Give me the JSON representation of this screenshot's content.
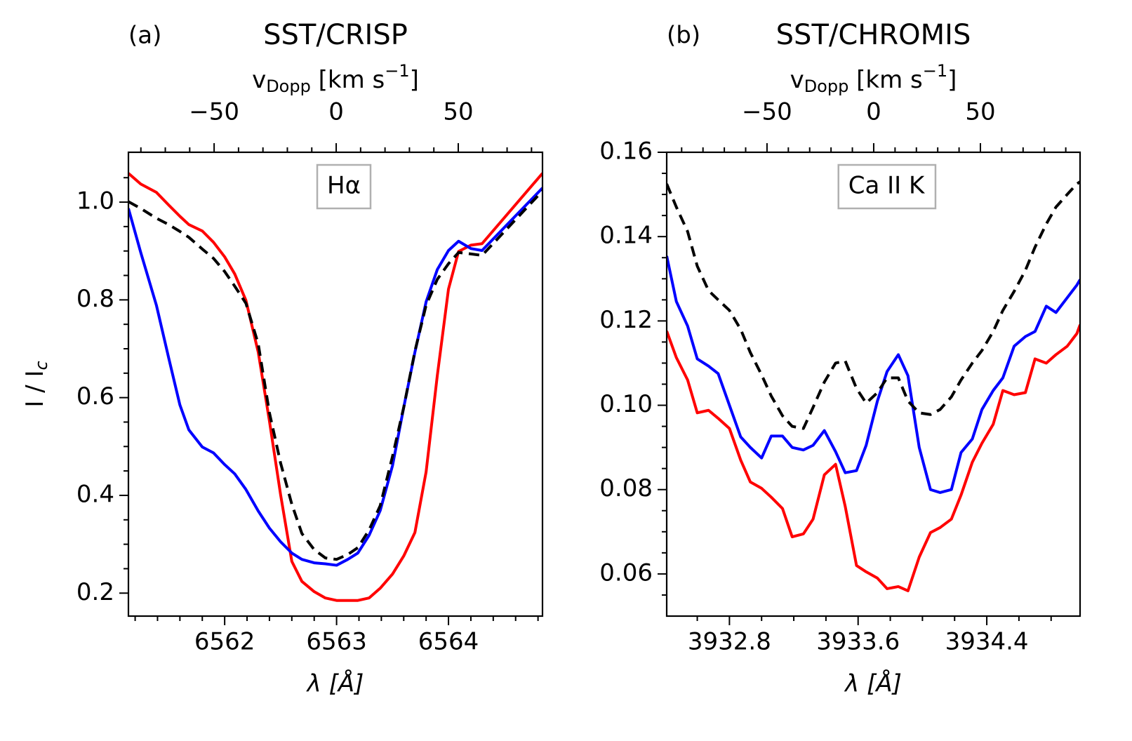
{
  "chart_data": [
    {
      "type": "line",
      "label": "(a)",
      "title": "SST/CRISP",
      "annotation": "Hα",
      "xlabel": "λ [Å]",
      "ylabel": [
        "I / I",
        "c"
      ],
      "x2label": [
        "v",
        "Dopp",
        " [km s",
        "−1",
        "]"
      ],
      "x": [
        6561.14,
        6561.25,
        6561.39,
        6561.5,
        6561.6,
        6561.68,
        6561.8,
        6561.9,
        6562,
        6562.09,
        6562.19,
        6562.3,
        6562.4,
        6562.5,
        6562.6,
        6562.69,
        6562.8,
        6562.9,
        6563,
        6563.1,
        6563.19,
        6563.29,
        6563.39,
        6563.5,
        6563.6,
        6563.7,
        6563.8,
        6563.9,
        6564,
        6564.09,
        6564.2,
        6564.3,
        6564.84
      ],
      "series": [
        {
          "color": "red",
          "linestyle": "solid",
          "values": [
            1.059,
            1.037,
            1.02,
            0.994,
            0.971,
            0.954,
            0.941,
            0.918,
            0.888,
            0.853,
            0.799,
            0.693,
            0.552,
            0.401,
            0.265,
            0.224,
            0.203,
            0.19,
            0.185,
            0.185,
            0.185,
            0.19,
            0.21,
            0.239,
            0.276,
            0.324,
            0.448,
            0.645,
            0.822,
            0.899,
            0.912,
            0.915,
            1.059
          ]
        },
        {
          "color": "blue",
          "linestyle": "solid",
          "values": [
            0.987,
            0.897,
            0.789,
            0.681,
            0.585,
            0.534,
            0.499,
            0.487,
            0.463,
            0.444,
            0.412,
            0.368,
            0.333,
            0.305,
            0.282,
            0.269,
            0.262,
            0.26,
            0.257,
            0.269,
            0.282,
            0.318,
            0.369,
            0.461,
            0.58,
            0.693,
            0.796,
            0.862,
            0.901,
            0.92,
            0.905,
            0.901,
            1.029
          ]
        },
        {
          "color": "black",
          "linestyle": "dashed",
          "values": [
            1.001,
            0.987,
            0.967,
            0.954,
            0.94,
            0.928,
            0.904,
            0.885,
            0.858,
            0.828,
            0.793,
            0.71,
            0.569,
            0.466,
            0.382,
            0.322,
            0.289,
            0.272,
            0.269,
            0.279,
            0.293,
            0.329,
            0.379,
            0.48,
            0.58,
            0.695,
            0.789,
            0.842,
            0.874,
            0.897,
            0.894,
            0.891,
            1.023
          ]
        }
      ],
      "xlim": [
        6561.14,
        6564.84
      ],
      "xticks": [
        6562,
        6563,
        6564
      ],
      "xminorticks": [
        6561.2,
        6561.4,
        6561.6,
        6561.8,
        6562.2,
        6562.4,
        6562.6,
        6562.8,
        6563.2,
        6563.4,
        6563.6,
        6563.8,
        6564.2,
        6564.4,
        6564.6,
        6564.8
      ],
      "ylim": [
        0.153,
        1.102
      ],
      "yticks": [
        0.2,
        0.4,
        0.6,
        0.8,
        {
          "value": 1,
          "label": "1.0"
        }
      ],
      "yminorticks": [
        0.25,
        0.3,
        0.35,
        0.45,
        0.5,
        0.55,
        0.65,
        0.7,
        0.75,
        0.85,
        0.9,
        0.95,
        1.05
      ],
      "x2lim": [
        -85.1,
        84.5
      ],
      "x2ticks": [
        {
          "value": -50,
          "label": "−50"
        },
        0,
        50
      ],
      "x2minorticks": [
        -80,
        -70,
        -60,
        -40,
        -30,
        -20,
        -10,
        10,
        20,
        30,
        40,
        60,
        70,
        80
      ]
    },
    {
      "type": "line",
      "label": "(b)",
      "title": "SST/CHROMIS",
      "annotation": "Ca II K",
      "xlabel": "λ [Å]",
      "x2label": [
        "v",
        "Dopp",
        " [km s",
        "−1",
        "]"
      ],
      "x": [
        3932.41,
        3932.47,
        3932.54,
        3932.6,
        3932.67,
        3932.73,
        3932.8,
        3932.87,
        3932.93,
        3933,
        3933.06,
        3933.13,
        3933.19,
        3933.26,
        3933.32,
        3933.39,
        3933.46,
        3933.52,
        3933.59,
        3933.65,
        3933.72,
        3933.78,
        3933.85,
        3933.91,
        3933.98,
        3934.05,
        3934.11,
        3934.18,
        3934.24,
        3934.31,
        3934.37,
        3934.44,
        3934.5,
        3934.57,
        3934.64,
        3934.7,
        3934.77,
        3934.83,
        3934.9,
        3934.96,
        3934.98
      ],
      "series": [
        {
          "color": "red",
          "linestyle": "solid",
          "values": [
            0.1176,
            0.1113,
            0.106,
            0.0982,
            0.0988,
            0.0969,
            0.0945,
            0.087,
            0.0818,
            0.0803,
            0.0782,
            0.0755,
            0.0688,
            0.0695,
            0.073,
            0.0835,
            0.086,
            0.076,
            0.062,
            0.0605,
            0.059,
            0.0565,
            0.057,
            0.056,
            0.064,
            0.0698,
            0.071,
            0.073,
            0.0787,
            0.0865,
            0.091,
            0.0955,
            0.1035,
            0.1025,
            0.103,
            0.111,
            0.11,
            0.112,
            0.114,
            0.117,
            0.1191
          ]
        },
        {
          "color": "blue",
          "linestyle": "solid",
          "values": [
            0.1354,
            0.1246,
            0.1188,
            0.111,
            0.1093,
            0.1075,
            0.1,
            0.0925,
            0.09,
            0.0875,
            0.0927,
            0.0927,
            0.09,
            0.0894,
            0.0905,
            0.094,
            0.089,
            0.084,
            0.0845,
            0.0905,
            0.101,
            0.108,
            0.112,
            0.107,
            0.09,
            0.08,
            0.0793,
            0.08,
            0.0888,
            0.092,
            0.099,
            0.1035,
            0.1065,
            0.114,
            0.1163,
            0.1175,
            0.1235,
            0.122,
            0.1255,
            0.1285,
            0.1298
          ]
        },
        {
          "color": "black",
          "linestyle": "dashed",
          "values": [
            0.1525,
            0.147,
            0.1412,
            0.133,
            0.1272,
            0.125,
            0.1225,
            0.118,
            0.1125,
            0.1072,
            0.1022,
            0.0975,
            0.095,
            0.0945,
            0.0995,
            0.1055,
            0.11,
            0.1105,
            0.104,
            0.1005,
            0.103,
            0.1065,
            0.1065,
            0.101,
            0.0982,
            0.0978,
            0.099,
            0.102,
            0.106,
            0.11,
            0.113,
            0.1175,
            0.1225,
            0.127,
            0.132,
            0.1375,
            0.143,
            0.147,
            0.15,
            0.1525,
            0.153
          ]
        }
      ],
      "xlim": [
        3932.41,
        3934.98
      ],
      "xticks": [
        3932.8,
        3933.6,
        3934.4
      ],
      "xminorticks": [
        3932.6,
        3933,
        3933.2,
        3933.4,
        3933.8,
        3934,
        3934.2,
        3934.6,
        3934.8
      ],
      "ylim": [
        0.05,
        0.16
      ],
      "yticks": [
        0.06,
        0.08,
        {
          "value": 0.1,
          "label": "0.10"
        },
        0.12,
        0.14,
        0.16
      ],
      "yminorticks": [
        0.055,
        0.065,
        0.07,
        0.075,
        0.085,
        0.09,
        0.095,
        0.105,
        0.11,
        0.115,
        0.125,
        0.13,
        0.135,
        0.145,
        0.15,
        0.155
      ],
      "x2lim": [
        -97,
        96.7
      ],
      "x2ticks": [
        {
          "value": -50,
          "label": "−50"
        },
        0,
        50
      ],
      "x2minorticks": [
        -90,
        -80,
        -70,
        -60,
        -40,
        -30,
        -20,
        -10,
        10,
        20,
        30,
        40,
        60,
        70,
        80,
        90
      ]
    }
  ]
}
